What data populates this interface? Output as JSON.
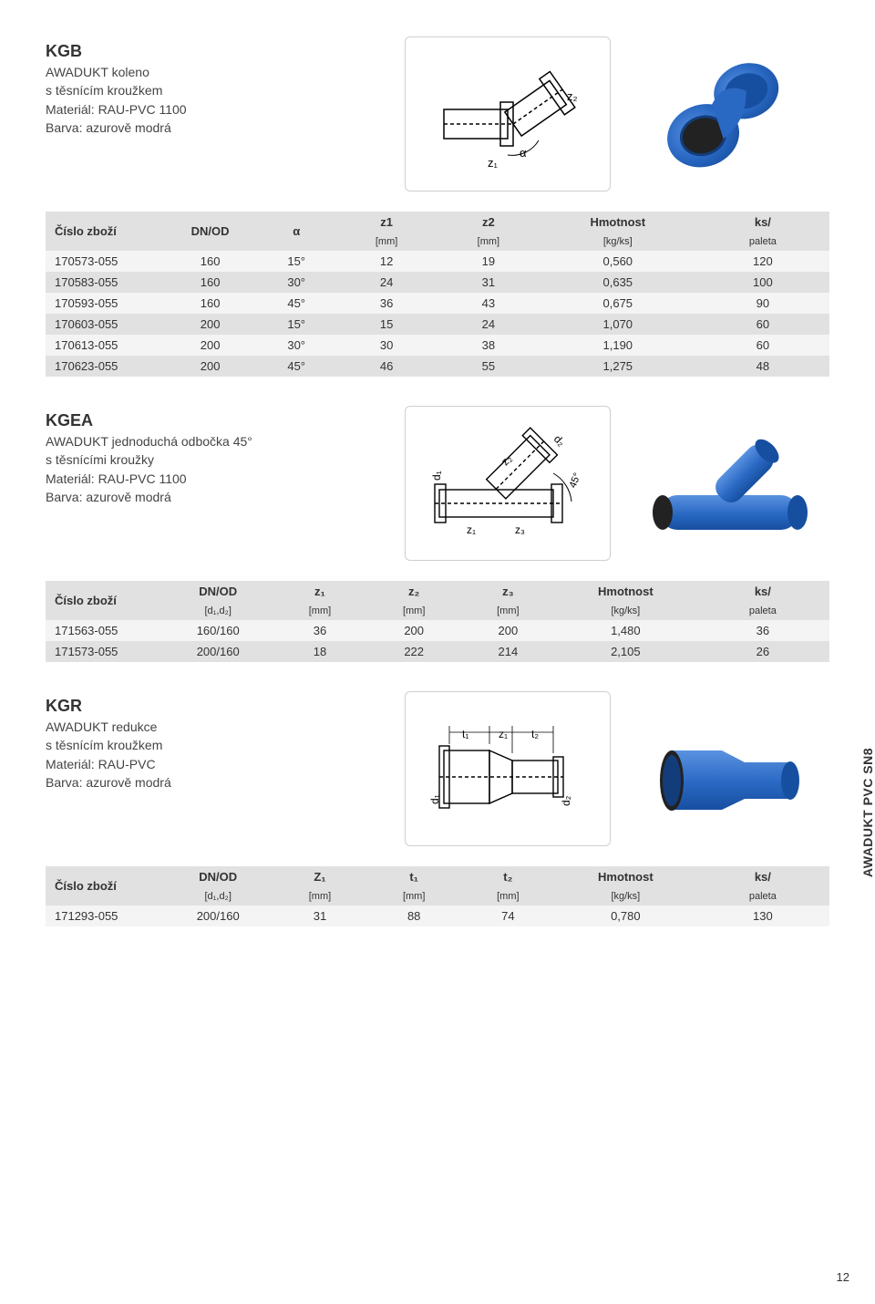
{
  "side_tab": "AWADUKT PVC SN8",
  "page_number": "12",
  "colors": {
    "header_bg": "#e1e1e1",
    "row_light": "#f4f4f4",
    "row_dark": "#e1e1e1",
    "text": "#333333",
    "border": "#cfcfcf",
    "fitting_blue": "#2968c3",
    "fitting_shadow": "#174fa0",
    "fitting_highlight": "#5a92e0",
    "seal_black": "#222222"
  },
  "kgb": {
    "code": "KGB",
    "desc_l1": "AWADUKT koleno",
    "desc_l2": "s těsnícím kroužkem",
    "desc_l3": "Materiál: RAU-PVC 1100",
    "desc_l4": "Barva: azurově modrá",
    "diagram_labels": {
      "z1": "z₁",
      "z2": "z₂",
      "alpha": "α"
    },
    "headers": {
      "c0": "Číslo zboží",
      "c1": "DN/OD",
      "c2": "α",
      "c3": "z1",
      "c3u": "[mm]",
      "c4": "z2",
      "c4u": "[mm]",
      "c5": "Hmotnost",
      "c5u": "[kg/ks]",
      "c6": "ks/",
      "c6u": "paleta"
    },
    "rows": [
      {
        "id": "170573-055",
        "dn": "160",
        "a": "15°",
        "z1": "12",
        "z2": "19",
        "w": "0,560",
        "pk": "120"
      },
      {
        "id": "170583-055",
        "dn": "160",
        "a": "30°",
        "z1": "24",
        "z2": "31",
        "w": "0,635",
        "pk": "100"
      },
      {
        "id": "170593-055",
        "dn": "160",
        "a": "45°",
        "z1": "36",
        "z2": "43",
        "w": "0,675",
        "pk": "90"
      },
      {
        "id": "170603-055",
        "dn": "200",
        "a": "15°",
        "z1": "15",
        "z2": "24",
        "w": "1,070",
        "pk": "60"
      },
      {
        "id": "170613-055",
        "dn": "200",
        "a": "30°",
        "z1": "30",
        "z2": "38",
        "w": "1,190",
        "pk": "60"
      },
      {
        "id": "170623-055",
        "dn": "200",
        "a": "45°",
        "z1": "46",
        "z2": "55",
        "w": "1,275",
        "pk": "48"
      }
    ]
  },
  "kgea": {
    "code": "KGEA",
    "desc_l1": "AWADUKT jednoduchá odbočka 45°",
    "desc_l2": "s těsnícími kroužky",
    "desc_l3": "Materiál: RAU-PVC 1100",
    "desc_l4": "Barva: azurově modrá",
    "diagram_labels": {
      "z1": "z₁",
      "z2": "z₂",
      "z3": "z₃",
      "d1": "d₁",
      "d2": "d₂",
      "ang": "45°"
    },
    "headers": {
      "c0": "Číslo zboží",
      "c1": "DN/OD",
      "c1u": "[d₁,d₂]",
      "c2": "z₁",
      "c2u": "[mm]",
      "c3": "z₂",
      "c3u": "[mm]",
      "c4": "z₃",
      "c4u": "[mm]",
      "c5": "Hmotnost",
      "c5u": "[kg/ks]",
      "c6": "ks/",
      "c6u": "paleta"
    },
    "rows": [
      {
        "id": "171563-055",
        "dn": "160/160",
        "z1": "36",
        "z2": "200",
        "z3": "200",
        "w": "1,480",
        "pk": "36"
      },
      {
        "id": "171573-055",
        "dn": "200/160",
        "z1": "18",
        "z2": "222",
        "z3": "214",
        "w": "2,105",
        "pk": "26"
      }
    ]
  },
  "kgr": {
    "code": "KGR",
    "desc_l1": "AWADUKT redukce",
    "desc_l2": "s těsnícím kroužkem",
    "desc_l3": "Materiál: RAU-PVC",
    "desc_l4": "Barva: azurově modrá",
    "diagram_labels": {
      "t1": "t₁",
      "z1": "z₁",
      "t2": "t₂",
      "d1": "d₁",
      "d2": "d₂"
    },
    "headers": {
      "c0": "Číslo zboží",
      "c1": "DN/OD",
      "c1u": "[d₁,d₂]",
      "c2": "Z₁",
      "c2u": "[mm]",
      "c3": "t₁",
      "c3u": "[mm]",
      "c4": "t₂",
      "c4u": "[mm]",
      "c5": "Hmotnost",
      "c5u": "[kg/ks]",
      "c6": "ks/",
      "c6u": "paleta"
    },
    "rows": [
      {
        "id": "171293-055",
        "dn": "200/160",
        "z1": "31",
        "t1": "88",
        "t2": "74",
        "w": "0,780",
        "pk": "130"
      }
    ]
  }
}
